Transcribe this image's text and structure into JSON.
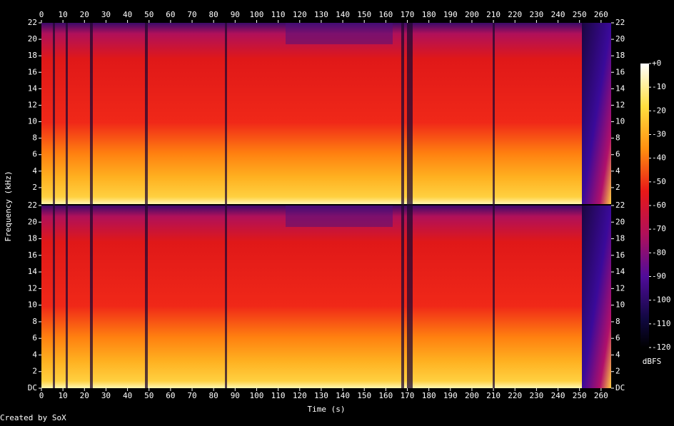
{
  "chart_data": {
    "type": "spectrogram",
    "x_label": "Time (s)",
    "y_label": "Frequency (kHz)",
    "xlim": [
      0,
      264.7
    ],
    "xticks": [
      0,
      10,
      20,
      30,
      40,
      50,
      60,
      70,
      80,
      90,
      100,
      110,
      120,
      130,
      140,
      150,
      160,
      170,
      180,
      190,
      200,
      210,
      220,
      230,
      240,
      250,
      260
    ],
    "channels": [
      {
        "ylim": [
          0,
          22
        ],
        "yticks": [
          2,
          4,
          6,
          8,
          10,
          12,
          14,
          16,
          18,
          20,
          22
        ]
      },
      {
        "ylim": [
          0,
          22
        ],
        "yticks": [
          {
            "value": 0,
            "label": "DC"
          },
          2,
          4,
          6,
          8,
          10,
          12,
          14,
          16,
          18,
          20,
          22
        ]
      }
    ],
    "colorbar": {
      "label": "dBFS",
      "lim": [
        -120,
        0
      ],
      "ticks": [
        {
          "value": 0,
          "label": "+0"
        },
        -10,
        -20,
        -30,
        -40,
        -50,
        -60,
        -70,
        -80,
        -90,
        -100,
        -110,
        -120
      ]
    },
    "footer": "Created by SoX"
  }
}
